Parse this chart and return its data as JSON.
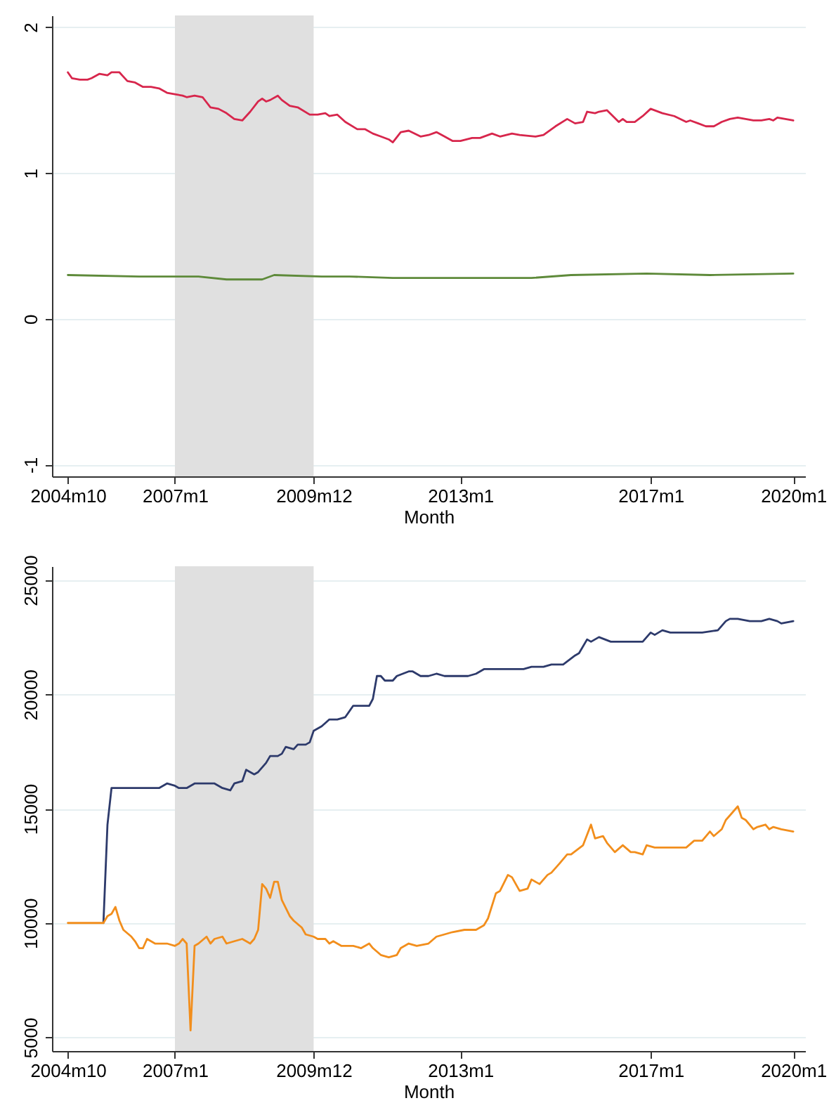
{
  "chart_data": [
    {
      "type": "line",
      "xlabel": "Month",
      "xlim": [
        "2004-06",
        "2020-04"
      ],
      "ylim": [
        -1.08,
        2.08
      ],
      "xticks": [
        {
          "value": "2004-10",
          "label": "2004m10"
        },
        {
          "value": "2007-01",
          "label": "2007m1"
        },
        {
          "value": "2009-12",
          "label": "2009m12"
        },
        {
          "value": "2013-01",
          "label": "2013m1"
        },
        {
          "value": "2017-01",
          "label": "2017m1"
        },
        {
          "value": "2020-01",
          "label": "2020m1"
        }
      ],
      "yticks": [
        -1,
        0,
        1,
        2
      ],
      "grid": "y",
      "bands": [
        {
          "axis": "x",
          "from": "2007-01",
          "to": "2009-12",
          "color": "#e0e0e0"
        }
      ],
      "series": [
        {
          "color": "#d7264c",
          "x": [
            "2004-10",
            "2004-11",
            "2005-01",
            "2005-03",
            "2005-04",
            "2005-06",
            "2005-08",
            "2005-09",
            "2005-11",
            "2005-12",
            "2006-01",
            "2006-03",
            "2006-05",
            "2006-07",
            "2006-09",
            "2006-11",
            "2007-01",
            "2007-03",
            "2007-04",
            "2007-06",
            "2007-08",
            "2007-10",
            "2007-12",
            "2008-02",
            "2008-04",
            "2008-06",
            "2008-08",
            "2008-10",
            "2008-11",
            "2008-12",
            "2009-01",
            "2009-03",
            "2009-04",
            "2009-06",
            "2009-08",
            "2009-11",
            "2010-01",
            "2010-03",
            "2010-04",
            "2010-06",
            "2010-08",
            "2010-11",
            "2011-01",
            "2011-03",
            "2011-05",
            "2011-07",
            "2011-08",
            "2011-10",
            "2011-12",
            "2012-03",
            "2012-05",
            "2012-07",
            "2012-09",
            "2012-11",
            "2013-01",
            "2013-04",
            "2013-06",
            "2013-09",
            "2013-11",
            "2014-02",
            "2014-04",
            "2014-08",
            "2014-10",
            "2015-01",
            "2015-04",
            "2015-06",
            "2015-08",
            "2015-09",
            "2015-11",
            "2015-12",
            "2016-02",
            "2016-05",
            "2016-06",
            "2016-07",
            "2016-09",
            "2016-11",
            "2017-01",
            "2017-04",
            "2017-07",
            "2017-10",
            "2017-11",
            "2018-01",
            "2018-03",
            "2018-05",
            "2018-07",
            "2018-09",
            "2018-11",
            "2019-03",
            "2019-05",
            "2019-07",
            "2019-08",
            "2019-09",
            "2019-11",
            "2020-01"
          ],
          "values": [
            1.69,
            1.65,
            1.64,
            1.64,
            1.65,
            1.68,
            1.67,
            1.69,
            1.69,
            1.66,
            1.63,
            1.62,
            1.59,
            1.59,
            1.58,
            1.55,
            1.54,
            1.53,
            1.52,
            1.53,
            1.52,
            1.45,
            1.44,
            1.41,
            1.37,
            1.36,
            1.42,
            1.49,
            1.51,
            1.49,
            1.5,
            1.53,
            1.5,
            1.46,
            1.45,
            1.4,
            1.4,
            1.41,
            1.39,
            1.4,
            1.35,
            1.3,
            1.3,
            1.27,
            1.25,
            1.23,
            1.21,
            1.28,
            1.29,
            1.25,
            1.26,
            1.28,
            1.25,
            1.22,
            1.22,
            1.24,
            1.24,
            1.27,
            1.25,
            1.27,
            1.26,
            1.25,
            1.26,
            1.32,
            1.37,
            1.34,
            1.35,
            1.42,
            1.41,
            1.42,
            1.43,
            1.35,
            1.37,
            1.35,
            1.35,
            1.39,
            1.44,
            1.41,
            1.39,
            1.35,
            1.36,
            1.34,
            1.32,
            1.32,
            1.35,
            1.37,
            1.38,
            1.36,
            1.36,
            1.37,
            1.36,
            1.38,
            1.37,
            1.36
          ]
        },
        {
          "color": "#5e8a3a",
          "x": [
            "2004-10",
            "2006-04",
            "2007-07",
            "2008-02",
            "2008-07",
            "2008-11",
            "2009-02",
            "2010-02",
            "2010-09",
            "2011-08",
            "2012-10",
            "2014-07",
            "2015-05",
            "2016-12",
            "2018-04",
            "2020-01"
          ],
          "values": [
            0.3,
            0.29,
            0.29,
            0.27,
            0.27,
            0.27,
            0.3,
            0.29,
            0.29,
            0.28,
            0.28,
            0.28,
            0.3,
            0.31,
            0.3,
            0.31
          ]
        }
      ]
    },
    {
      "type": "line",
      "xlabel": "Month",
      "xlim": [
        "2004-06",
        "2020-04"
      ],
      "ylim": [
        4400,
        25600
      ],
      "xticks": [
        {
          "value": "2004-10",
          "label": "2004m10"
        },
        {
          "value": "2007-01",
          "label": "2007m1"
        },
        {
          "value": "2009-12",
          "label": "2009m12"
        },
        {
          "value": "2013-01",
          "label": "2013m1"
        },
        {
          "value": "2017-01",
          "label": "2017m1"
        },
        {
          "value": "2020-01",
          "label": "2020m1"
        }
      ],
      "yticks": [
        5000,
        10000,
        15000,
        20000,
        25000
      ],
      "grid": "y",
      "bands": [
        {
          "axis": "x",
          "from": "2007-01",
          "to": "2009-12",
          "color": "#e0e0e0"
        }
      ],
      "series": [
        {
          "color": "#2d3a6b",
          "x": [
            "2005-07",
            "2005-08",
            "2005-09",
            "2006-09",
            "2006-11",
            "2007-01",
            "2007-02",
            "2007-04",
            "2007-06",
            "2007-11",
            "2008-01",
            "2008-03",
            "2008-04",
            "2008-06",
            "2008-07",
            "2008-09",
            "2008-10",
            "2008-12",
            "2009-01",
            "2009-03",
            "2009-04",
            "2009-05",
            "2009-07",
            "2009-08",
            "2009-10",
            "2009-11",
            "2009-12",
            "2010-02",
            "2010-04",
            "2010-06",
            "2010-08",
            "2010-10",
            "2011-02",
            "2011-03",
            "2011-04",
            "2011-05",
            "2011-06",
            "2011-08",
            "2011-09",
            "2011-12",
            "2012-01",
            "2012-03",
            "2012-05",
            "2012-07",
            "2012-09",
            "2013-03",
            "2013-05",
            "2013-07",
            "2013-08",
            "2014-05",
            "2014-07",
            "2014-10",
            "2014-12",
            "2015-03",
            "2015-06",
            "2015-07",
            "2015-09",
            "2015-10",
            "2015-12",
            "2016-03",
            "2016-04",
            "2016-11",
            "2017-01",
            "2017-02",
            "2017-04",
            "2017-06",
            "2018-02",
            "2018-06",
            "2018-08",
            "2018-09",
            "2018-11",
            "2019-02",
            "2019-05",
            "2019-07",
            "2019-09",
            "2019-10",
            "2020-01"
          ],
          "values": [
            10000,
            14300,
            15900,
            15900,
            16100,
            16000,
            15900,
            15900,
            16100,
            16100,
            15900,
            15800,
            16100,
            16200,
            16700,
            16500,
            16600,
            17000,
            17300,
            17300,
            17400,
            17700,
            17600,
            17800,
            17800,
            17900,
            18400,
            18600,
            18900,
            18900,
            19000,
            19500,
            19500,
            19800,
            20800,
            20800,
            20600,
            20600,
            20800,
            21000,
            21000,
            20800,
            20800,
            20900,
            20800,
            20800,
            20900,
            21100,
            21100,
            21100,
            21200,
            21200,
            21300,
            21300,
            21700,
            21800,
            22400,
            22300,
            22500,
            22300,
            22300,
            22300,
            22700,
            22600,
            22800,
            22700,
            22700,
            22800,
            23200,
            23300,
            23300,
            23200,
            23200,
            23300,
            23200,
            23100,
            23200
          ]
        },
        {
          "color": "#f28e1c",
          "x": [
            "2004-10",
            "2005-07",
            "2005-08",
            "2005-09",
            "2005-10",
            "2005-11",
            "2005-12",
            "2006-02",
            "2006-03",
            "2006-04",
            "2006-05",
            "2006-06",
            "2006-08",
            "2006-10",
            "2006-11",
            "2007-01",
            "2007-02",
            "2007-03",
            "2007-04",
            "2007-05",
            "2007-06",
            "2007-07",
            "2007-09",
            "2007-10",
            "2007-11",
            "2008-01",
            "2008-02",
            "2008-04",
            "2008-06",
            "2008-08",
            "2008-09",
            "2008-10",
            "2008-11",
            "2008-12",
            "2009-01",
            "2009-02",
            "2009-03",
            "2009-04",
            "2009-06",
            "2009-07",
            "2009-09",
            "2009-10",
            "2009-12",
            "2010-01",
            "2010-03",
            "2010-04",
            "2010-05",
            "2010-07",
            "2010-10",
            "2010-12",
            "2011-02",
            "2011-03",
            "2011-05",
            "2011-07",
            "2011-09",
            "2011-10",
            "2011-12",
            "2012-02",
            "2012-05",
            "2012-07",
            "2012-09",
            "2012-11",
            "2013-02",
            "2013-05",
            "2013-07",
            "2013-08",
            "2013-10",
            "2013-11",
            "2014-01",
            "2014-02",
            "2014-04",
            "2014-06",
            "2014-07",
            "2014-09",
            "2014-11",
            "2014-12",
            "2015-02",
            "2015-04",
            "2015-05",
            "2015-08",
            "2015-10",
            "2015-11",
            "2016-01",
            "2016-02",
            "2016-04",
            "2016-06",
            "2016-08",
            "2016-09",
            "2016-11",
            "2016-12",
            "2017-02",
            "2017-08",
            "2017-10",
            "2017-12",
            "2018-02",
            "2018-04",
            "2018-05",
            "2018-07",
            "2018-08",
            "2018-09",
            "2018-11",
            "2018-12",
            "2019-01",
            "2019-03",
            "2019-04",
            "2019-06",
            "2019-07",
            "2019-08",
            "2019-10",
            "2020-01"
          ],
          "values": [
            10000,
            10000,
            10300,
            10400,
            10700,
            10100,
            9700,
            9400,
            9200,
            8900,
            8900,
            9300,
            9100,
            9100,
            9100,
            9000,
            9100,
            9300,
            9100,
            5300,
            9000,
            9100,
            9400,
            9100,
            9300,
            9400,
            9100,
            9200,
            9300,
            9100,
            9300,
            9700,
            11700,
            11500,
            11100,
            11800,
            11800,
            11000,
            10300,
            10100,
            9800,
            9500,
            9400,
            9300,
            9300,
            9100,
            9200,
            9000,
            9000,
            8900,
            9100,
            8900,
            8600,
            8500,
            8600,
            8900,
            9100,
            9000,
            9100,
            9400,
            9500,
            9600,
            9700,
            9700,
            9900,
            10200,
            11300,
            11400,
            12100,
            12000,
            11400,
            11500,
            11900,
            11700,
            12100,
            12200,
            12600,
            13000,
            13000,
            13400,
            14300,
            13700,
            13800,
            13500,
            13100,
            13400,
            13100,
            13100,
            13000,
            13400,
            13300,
            13300,
            13300,
            13600,
            13600,
            14000,
            13800,
            14100,
            14500,
            14700,
            15100,
            14600,
            14500,
            14100,
            14200,
            14300,
            14100,
            14200,
            14100,
            14000
          ]
        }
      ]
    }
  ]
}
